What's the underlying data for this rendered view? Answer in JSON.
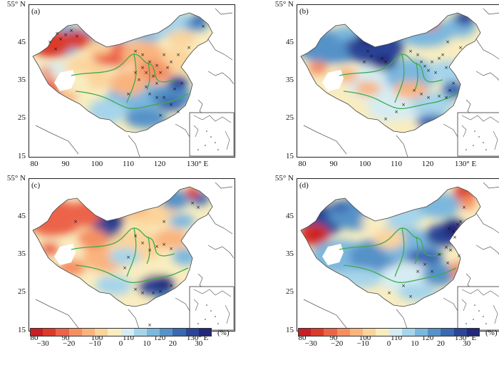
{
  "panels": [
    {
      "label": "(a)"
    },
    {
      "label": "(b)"
    },
    {
      "label": "(c)"
    },
    {
      "label": "(d)"
    }
  ],
  "axis": {
    "lat_labels": [
      "55° N",
      "45",
      "35",
      "25",
      "15"
    ],
    "lon_labels": [
      "80",
      "90",
      "100",
      "110",
      "120",
      "130° E"
    ]
  },
  "colorbar": {
    "unit": "(%)",
    "tick_labels": [
      "−30",
      "−20",
      "−10",
      "0",
      "10",
      "20",
      "30"
    ],
    "colors": [
      "#c81e24",
      "#dc3b2c",
      "#ec6448",
      "#f58f62",
      "#f9b47e",
      "#fbd49b",
      "#f9edc0",
      "#d6ecf2",
      "#a6d4ea",
      "#7bb7de",
      "#5592c8",
      "#3b68b0",
      "#2b4597",
      "#23287a"
    ]
  },
  "colors": {
    "map_sea": "#ffffff",
    "river": "#3cac4a",
    "coast": "#555555",
    "station": "#111111"
  }
}
